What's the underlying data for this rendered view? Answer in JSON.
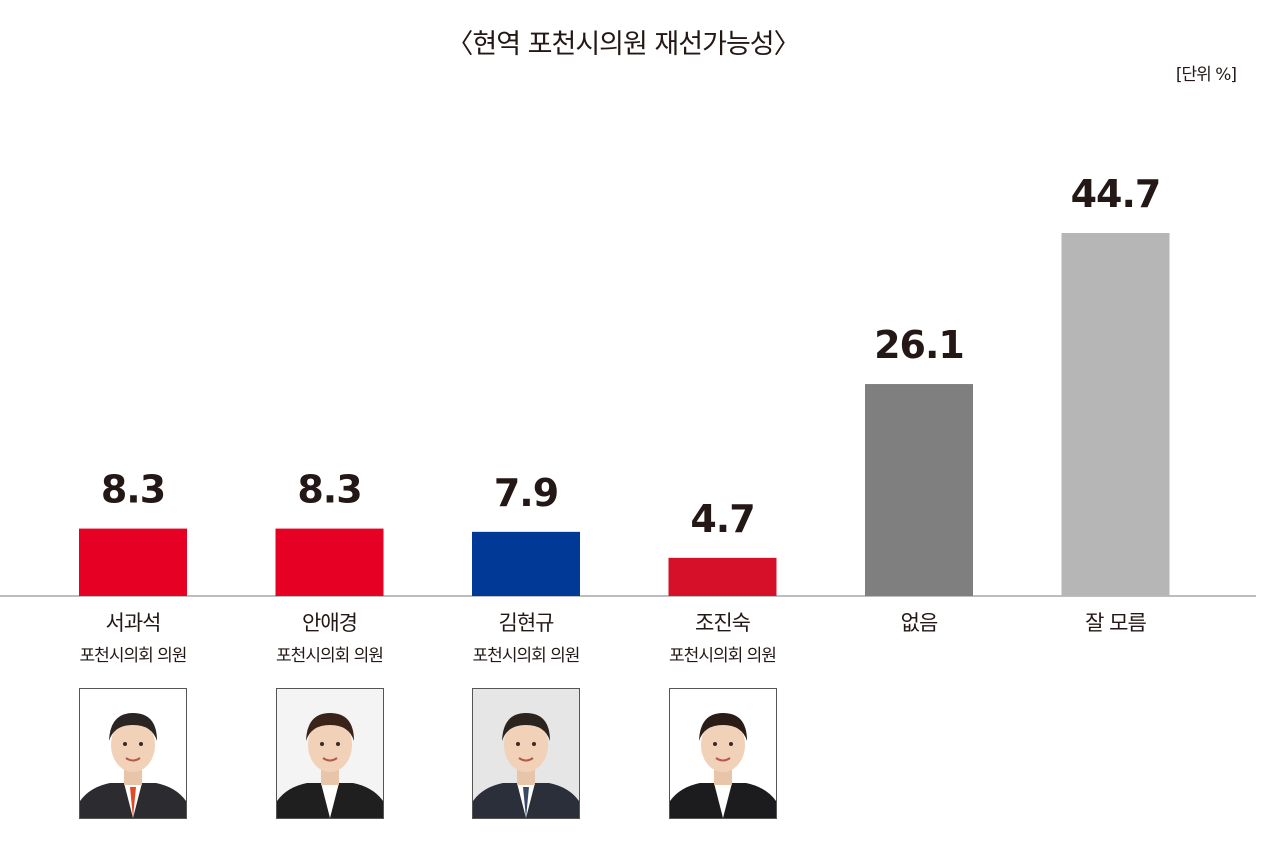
{
  "title": "〈현역 포천시의원 재선가능성〉",
  "unit": "[단위 %]",
  "chart_data": {
    "type": "bar",
    "categories": [
      "서과석",
      "안애경",
      "김현규",
      "조진숙",
      "없음",
      "잘 모름"
    ],
    "subtitles": [
      "포천시의회 의원",
      "포천시의회 의원",
      "포천시의회 의원",
      "포천시의회 의원",
      "",
      ""
    ],
    "values": [
      8.3,
      8.3,
      7.9,
      4.7,
      26.1,
      44.7
    ],
    "value_labels": [
      "8.3",
      "8.3",
      "7.9",
      "4.7",
      "26.1",
      "44.7"
    ],
    "colors": [
      "#e60023",
      "#e60023",
      "#003a96",
      "#d7102a",
      "#7f7f7f",
      "#b6b6b6"
    ],
    "ylim": [
      0,
      44.7
    ],
    "grid": false,
    "legend": "none"
  },
  "photos": [
    {
      "icon": "portrait-photo",
      "jacket": "#2b2b30",
      "tie": "#e34a2a",
      "hair": "#2a2522",
      "bg": "#ffffff"
    },
    {
      "icon": "portrait-photo",
      "jacket": "#1f1f1f",
      "tie": "#ffffff",
      "hair": "#3a241a",
      "bg": "#f4f4f4"
    },
    {
      "icon": "portrait-photo",
      "jacket": "#2a2f3a",
      "tie": "#3a4a66",
      "hair": "#2b231d",
      "bg": "#e6e6e6"
    },
    {
      "icon": "portrait-photo",
      "jacket": "#1c1c1e",
      "tie": "#ffffff",
      "hair": "#2a1c16",
      "bg": "#ffffff"
    }
  ]
}
